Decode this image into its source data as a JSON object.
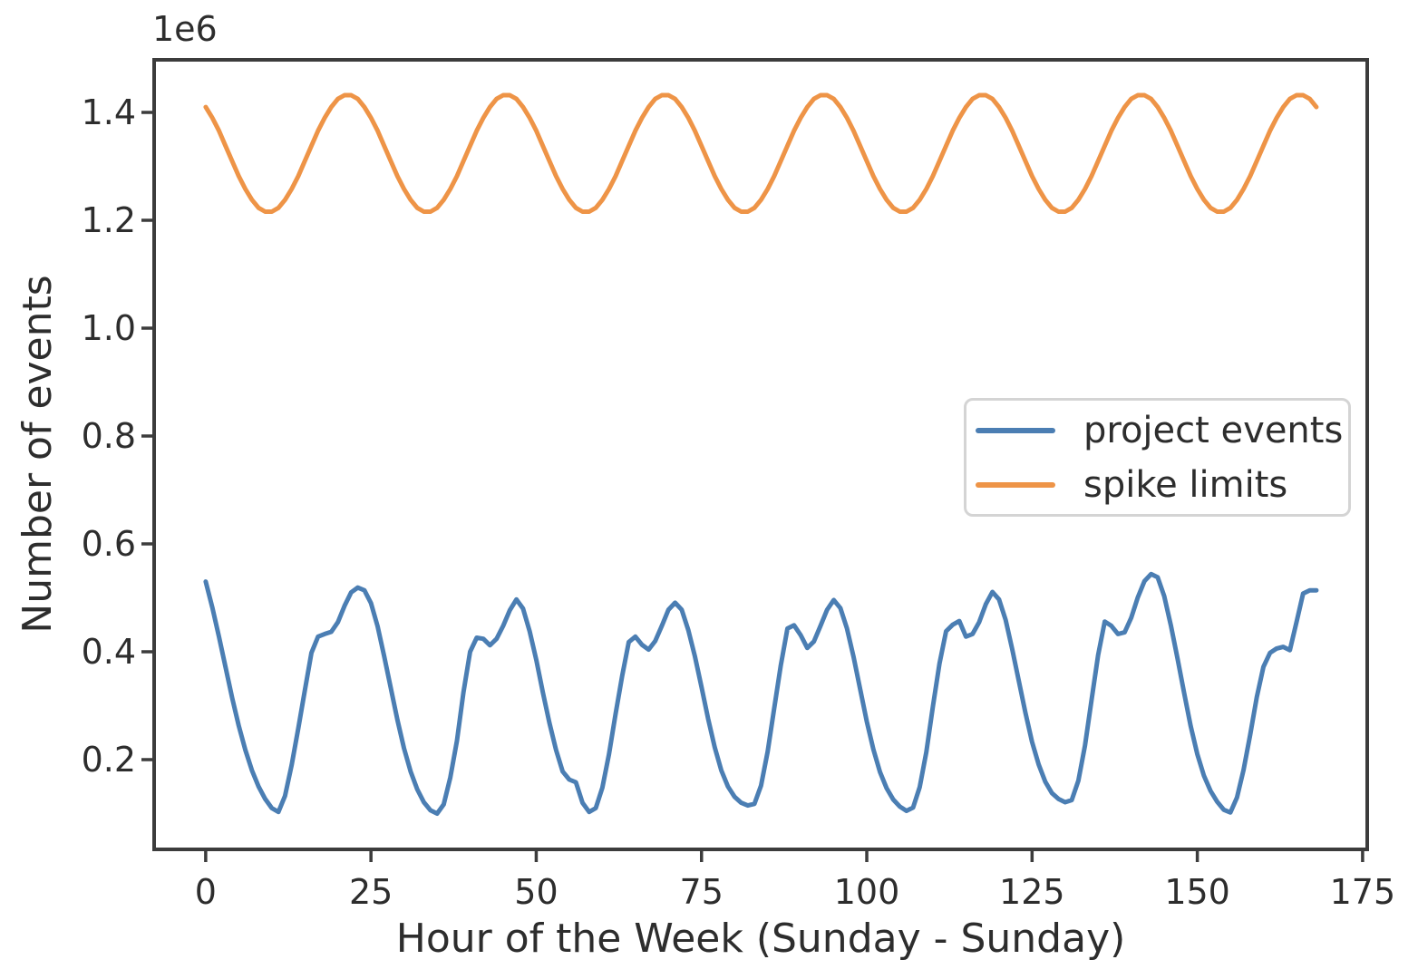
{
  "chart_data": {
    "type": "line",
    "title": "",
    "xlabel": "Hour of the Week (Sunday - Sunday)",
    "ylabel": "Number of events",
    "offset_text": "1e6",
    "grid": false,
    "legend_location": "center right",
    "xlim": [
      -7.8,
      175.7
    ],
    "ylim": [
      33600,
      1497500
    ],
    "x_ticks": [
      {
        "v": 0,
        "label": "0"
      },
      {
        "v": 25,
        "label": "25"
      },
      {
        "v": 50,
        "label": "50"
      },
      {
        "v": 75,
        "label": "75"
      },
      {
        "v": 100,
        "label": "100"
      },
      {
        "v": 125,
        "label": "125"
      },
      {
        "v": 150,
        "label": "150"
      },
      {
        "v": 175,
        "label": "175"
      }
    ],
    "y_ticks": [
      {
        "v": 200000,
        "label": "0.2"
      },
      {
        "v": 400000,
        "label": "0.4"
      },
      {
        "v": 600000,
        "label": "0.6"
      },
      {
        "v": 800000,
        "label": "0.8"
      },
      {
        "v": 1000000,
        "label": "1.0"
      },
      {
        "v": 1200000,
        "label": "1.2"
      },
      {
        "v": 1400000,
        "label": "1.4"
      }
    ],
    "axis_color": "#3c3c3c",
    "text_color": "#2d2d2d",
    "series": [
      {
        "name": "project events",
        "color": "#4b7eb3",
        "hours_start": 0,
        "hours_step": 1,
        "values": [
          530000,
          482000,
          428000,
          372000,
          315000,
          263000,
          218000,
          180000,
          150000,
          127000,
          110000,
          103000,
          133000,
          190000,
          258000,
          328000,
          398000,
          428000,
          433000,
          437000,
          455000,
          485000,
          510000,
          519000,
          514000,
          490000,
          447000,
          392000,
          333000,
          274000,
          221000,
          178000,
          145000,
          121000,
          106000,
          100000,
          117000,
          167000,
          235000,
          325000,
          400000,
          426000,
          424000,
          412000,
          424000,
          448000,
          477000,
          497000,
          480000,
          438000,
          385000,
          325000,
          268000,
          218000,
          178000,
          163000,
          158000,
          120000,
          103000,
          110000,
          148000,
          210000,
          285000,
          355000,
          418000,
          428000,
          413000,
          404000,
          420000,
          448000,
          478000,
          491000,
          478000,
          440000,
          392000,
          335000,
          276000,
          223000,
          180000,
          150000,
          131000,
          120000,
          115000,
          118000,
          152000,
          215000,
          295000,
          375000,
          443000,
          449000,
          431000,
          407000,
          419000,
          448000,
          478000,
          496000,
          481000,
          443000,
          391000,
          331000,
          271000,
          219000,
          177000,
          147000,
          126000,
          113000,
          105000,
          111000,
          149000,
          214000,
          298000,
          378000,
          438000,
          450000,
          457000,
          428000,
          433000,
          455000,
          488000,
          511000,
          497000,
          459000,
          405000,
          346000,
          287000,
          233000,
          191000,
          159000,
          138000,
          127000,
          121000,
          125000,
          161000,
          226000,
          310000,
          394000,
          456000,
          448000,
          433000,
          436000,
          463000,
          501000,
          531000,
          544000,
          538000,
          503000,
          449000,
          388000,
          324000,
          262000,
          210000,
          170000,
          142000,
          122000,
          107000,
          102000,
          130000,
          181000,
          246000,
          316000,
          372000,
          398000,
          406000,
          409000,
          403000,
          455000,
          508000,
          514000,
          514000
        ]
      },
      {
        "name": "spike limits",
        "color": "#ee9447",
        "hours_start": 0,
        "hours_step": 1,
        "values": [
          1410000,
          1390000,
          1366000,
          1338000,
          1310000,
          1282000,
          1258000,
          1238000,
          1223000,
          1216000,
          1216000,
          1223000,
          1238000,
          1258000,
          1282000,
          1310000,
          1338000,
          1366000,
          1390000,
          1410000,
          1425000,
          1432000,
          1432000,
          1425000,
          1410000,
          1390000,
          1366000,
          1338000,
          1310000,
          1282000,
          1258000,
          1238000,
          1223000,
          1216000,
          1216000,
          1223000,
          1238000,
          1258000,
          1282000,
          1310000,
          1338000,
          1366000,
          1390000,
          1410000,
          1425000,
          1432000,
          1432000,
          1425000,
          1410000,
          1390000,
          1366000,
          1338000,
          1310000,
          1282000,
          1258000,
          1238000,
          1223000,
          1216000,
          1216000,
          1223000,
          1238000,
          1258000,
          1282000,
          1310000,
          1338000,
          1366000,
          1390000,
          1410000,
          1425000,
          1432000,
          1432000,
          1425000,
          1410000,
          1390000,
          1366000,
          1338000,
          1310000,
          1282000,
          1258000,
          1238000,
          1223000,
          1216000,
          1216000,
          1223000,
          1238000,
          1258000,
          1282000,
          1310000,
          1338000,
          1366000,
          1390000,
          1410000,
          1425000,
          1432000,
          1432000,
          1425000,
          1410000,
          1390000,
          1366000,
          1338000,
          1310000,
          1282000,
          1258000,
          1238000,
          1223000,
          1216000,
          1216000,
          1223000,
          1238000,
          1258000,
          1282000,
          1310000,
          1338000,
          1366000,
          1390000,
          1410000,
          1425000,
          1432000,
          1432000,
          1425000,
          1410000,
          1390000,
          1366000,
          1338000,
          1310000,
          1282000,
          1258000,
          1238000,
          1223000,
          1216000,
          1216000,
          1223000,
          1238000,
          1258000,
          1282000,
          1310000,
          1338000,
          1366000,
          1390000,
          1410000,
          1425000,
          1432000,
          1432000,
          1425000,
          1410000,
          1390000,
          1366000,
          1338000,
          1310000,
          1282000,
          1258000,
          1238000,
          1223000,
          1216000,
          1216000,
          1223000,
          1238000,
          1258000,
          1282000,
          1310000,
          1338000,
          1366000,
          1390000,
          1410000,
          1425000,
          1432000,
          1432000,
          1425000,
          1410000
        ]
      }
    ]
  }
}
